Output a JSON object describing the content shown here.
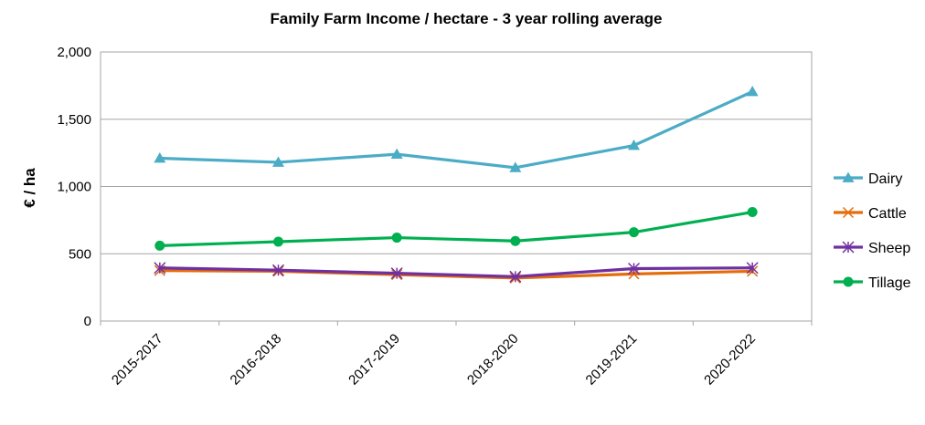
{
  "chart_data": {
    "type": "line",
    "title": "Family Farm Income / hectare - 3 year rolling average",
    "xlabel": "",
    "ylabel": "€ / ha",
    "categories": [
      "2015-2017",
      "2016-2018",
      "2017-2019",
      "2018-2020",
      "2019-2021",
      "2020-2022"
    ],
    "ylim": [
      0,
      2000
    ],
    "yticks": [
      0,
      500,
      1000,
      1500,
      2000
    ],
    "ytick_labels": [
      "0",
      "500",
      "1,000",
      "1,500",
      "2,000"
    ],
    "grid": "horizontal",
    "legend": "right",
    "series": [
      {
        "name": "Dairy",
        "values": [
          1210,
          1180,
          1240,
          1140,
          1305,
          1705
        ],
        "color": "#4bacc6",
        "marker": "triangle"
      },
      {
        "name": "Cattle",
        "values": [
          375,
          370,
          345,
          320,
          350,
          370
        ],
        "color": "#e46c0a",
        "marker": "x"
      },
      {
        "name": "Sheep",
        "values": [
          395,
          378,
          355,
          330,
          390,
          395
        ],
        "color": "#7030a0",
        "marker": "star"
      },
      {
        "name": "Tillage",
        "values": [
          560,
          590,
          620,
          595,
          660,
          810
        ],
        "color": "#00b050",
        "marker": "circle"
      }
    ]
  }
}
